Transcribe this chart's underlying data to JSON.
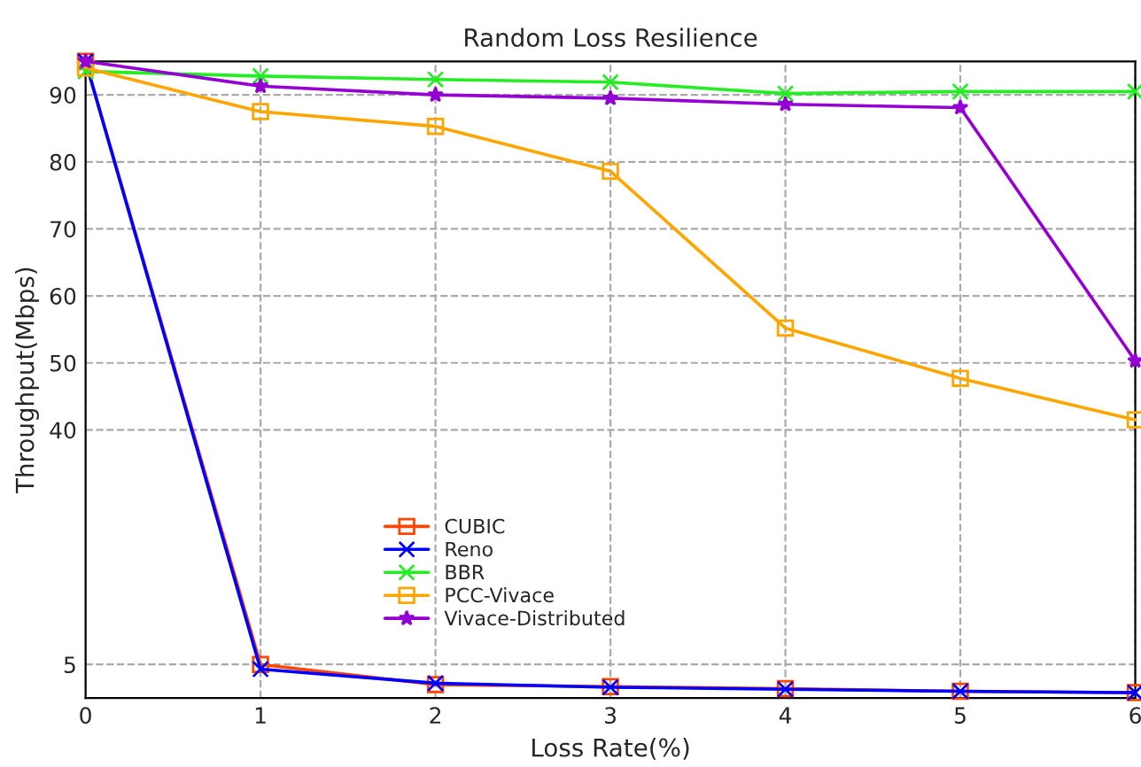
{
  "chart_data": {
    "type": "line",
    "title": "Random Loss Resilience",
    "xlabel": "Loss Rate(%)",
    "ylabel": "Throughput(Mbps)",
    "x": [
      0,
      1,
      2,
      3,
      4,
      5,
      6
    ],
    "xlim": [
      0,
      6
    ],
    "xticks": [
      0,
      1,
      2,
      3,
      4,
      5,
      6
    ],
    "ylim": [
      0,
      95
    ],
    "yticks": [
      5,
      40,
      50,
      60,
      70,
      80,
      90
    ],
    "grid": true,
    "legend": "bottom",
    "line_style": "solid",
    "series": [
      {
        "name": "CUBIC",
        "color": "#ff4500",
        "marker": "square",
        "values": [
          95,
          5.0,
          2.0,
          1.7,
          1.4,
          1.0,
          0.8
        ]
      },
      {
        "name": "Reno",
        "color": "#0000ff",
        "marker": "cross",
        "values": [
          95,
          4.3,
          2.2,
          1.6,
          1.3,
          1.0,
          0.8
        ]
      },
      {
        "name": "BBR",
        "color": "#22ee22",
        "marker": "cross",
        "values": [
          93.5,
          92.8,
          92.3,
          91.9,
          90.2,
          90.5,
          90.5
        ]
      },
      {
        "name": "PCC-Vivace",
        "color": "#ffa500",
        "marker": "square",
        "values": [
          94,
          87.5,
          85.3,
          78.6,
          55.2,
          47.7,
          41.5
        ]
      },
      {
        "name": "Vivace-Distributed",
        "color": "#9400d3",
        "marker": "star",
        "values": [
          95,
          91.3,
          90,
          89.5,
          88.6,
          88.1,
          50.3
        ]
      }
    ]
  }
}
